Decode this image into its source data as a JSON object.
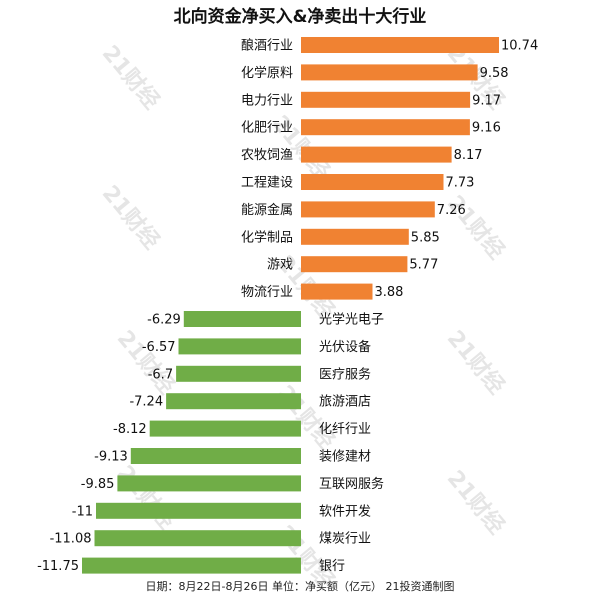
{
  "chart_data": {
    "type": "bar",
    "title": "北向资金净买入&净卖出十大行业",
    "footer": "日期：8月22日-8月26日 单位：净买额（亿元） 21投资通制图",
    "watermark": "21财经",
    "xlim": [
      -11.75,
      10.74
    ],
    "grid": false,
    "colors": {
      "positive": "#f08232",
      "negative": "#70ad47"
    },
    "categories": [
      "酿酒行业",
      "化学原料",
      "电力行业",
      "化肥行业",
      "农牧饲渔",
      "工程建设",
      "能源金属",
      "化学制品",
      "游戏",
      "物流行业",
      "光学光电子",
      "光伏设备",
      "医疗服务",
      "旅游酒店",
      "化纤行业",
      "装修建材",
      "互联网服务",
      "软件开发",
      "煤炭行业",
      "银行"
    ],
    "value_labels": [
      "10.74",
      "9.58",
      "9.17",
      "9.16",
      "8.17",
      "7.73",
      "7.26",
      "5.85",
      "5.77",
      "3.88",
      "-6.29",
      "-6.57",
      "-6.7",
      "-7.24",
      "-8.12",
      "-9.13",
      "-9.85",
      "-11",
      "-11.08",
      "-11.75"
    ],
    "values": [
      10.74,
      9.58,
      9.17,
      9.16,
      8.17,
      7.73,
      7.26,
      5.85,
      5.77,
      3.88,
      -6.29,
      -6.57,
      -6.7,
      -7.24,
      -8.12,
      -9.13,
      -9.85,
      -11,
      -11.08,
      -11.75
    ]
  }
}
